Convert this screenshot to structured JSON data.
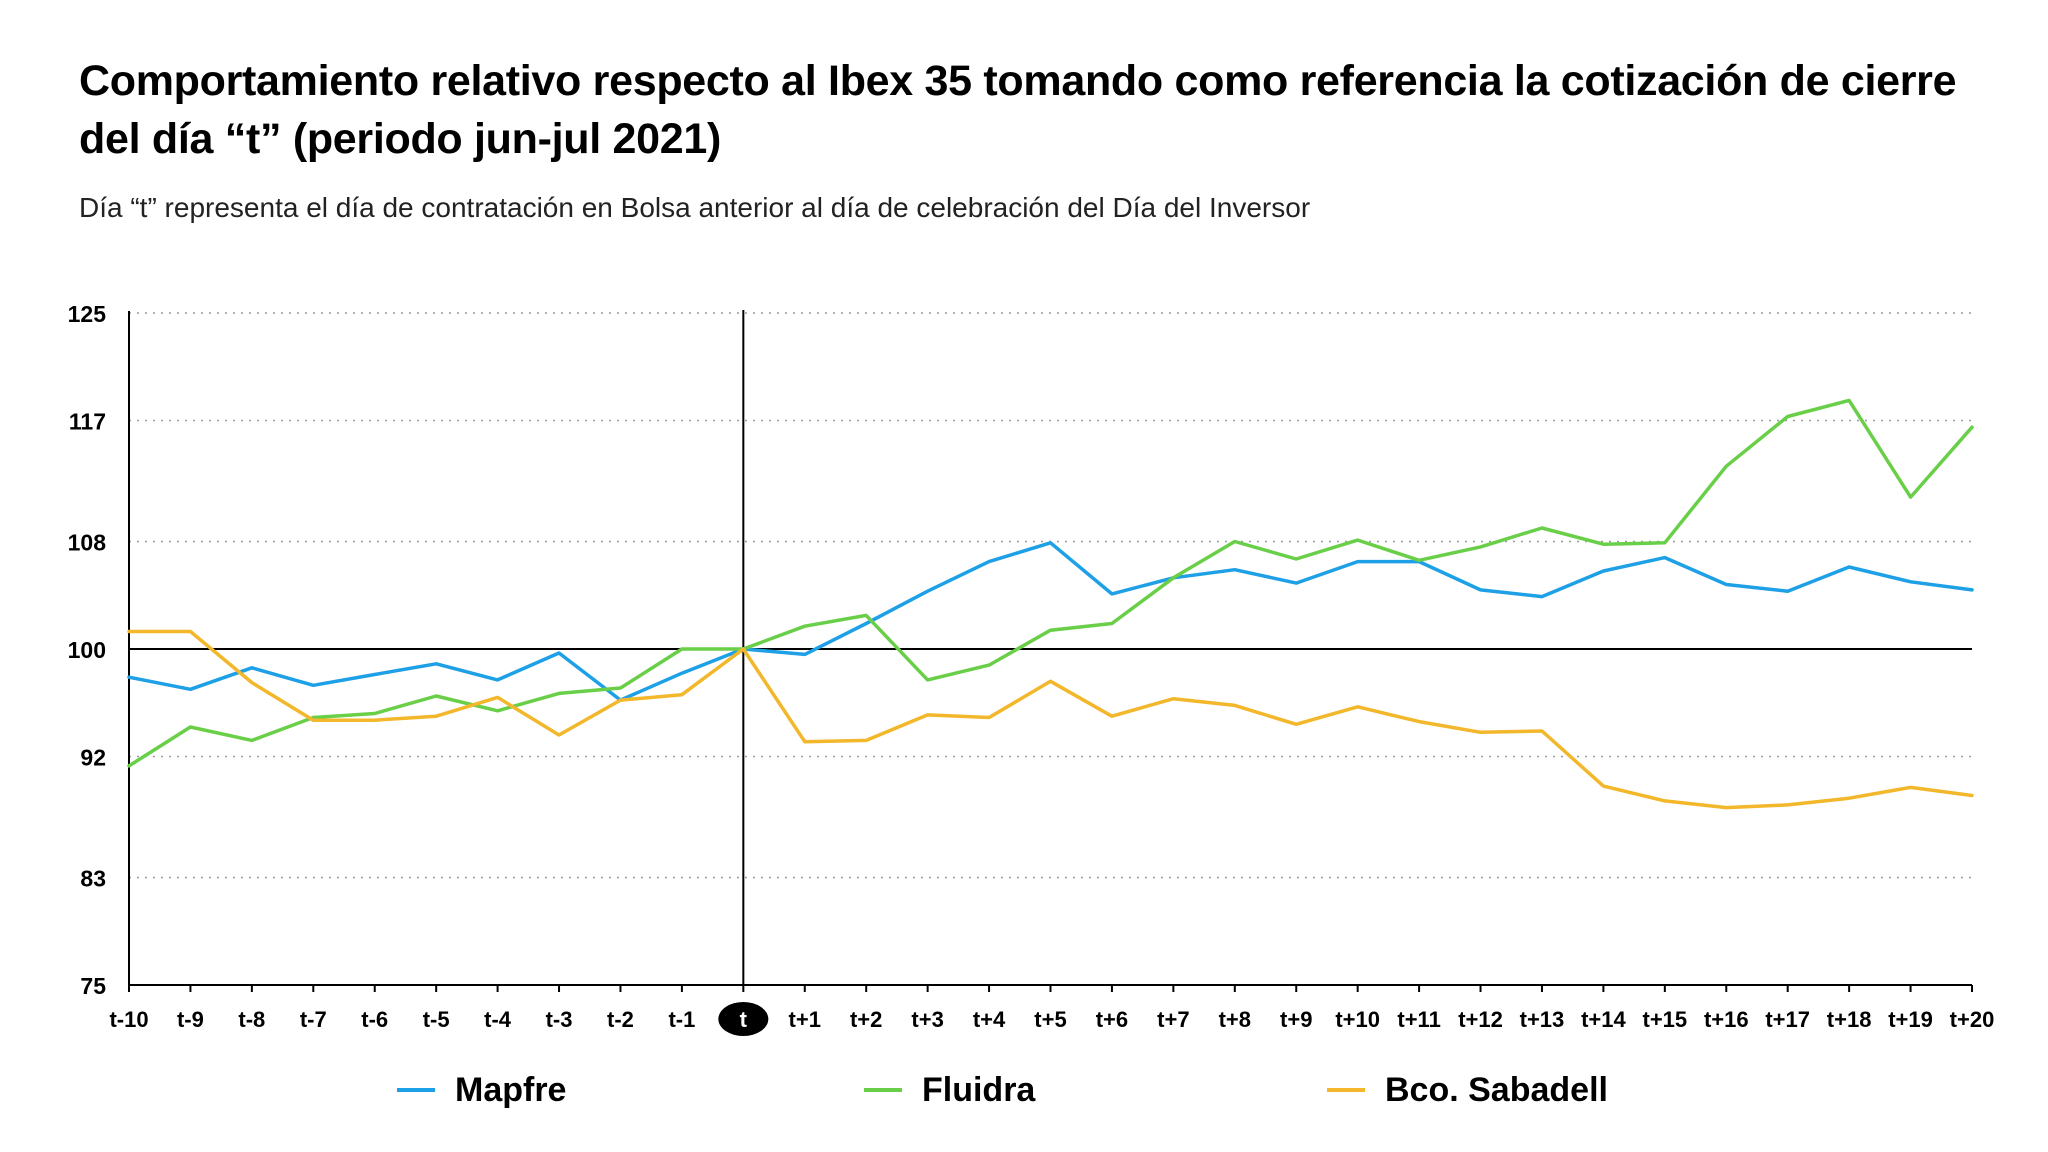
{
  "header": {
    "title": "Comportamiento relativo respecto al Ibex 35 tomando como referencia la cotización de cierre del día “t” (periodo jun-jul 2021)",
    "subtitle": "Día “t” representa el día de contratación en Bolsa anterior al día de celebración del Día del Inversor"
  },
  "chart_data": {
    "type": "line",
    "title": "Comportamiento relativo respecto al Ibex 35 tomando como referencia la cotización de cierre del día “t” (periodo jun-jul 2021)",
    "subtitle": "Día “t” representa el día de contratación en Bolsa anterior al día de celebración del Día del Inversor",
    "xlabel": "",
    "ylabel": "",
    "ylim": [
      75,
      125
    ],
    "yticks": [
      75,
      83,
      92,
      100,
      108,
      117,
      125
    ],
    "grid": true,
    "legend_position": "bottom",
    "reference_line": 100,
    "highlighted_category": "t",
    "categories": [
      "t-10",
      "t-9",
      "t-8",
      "t-7",
      "t-6",
      "t-5",
      "t-4",
      "t-3",
      "t-2",
      "t-1",
      "t",
      "t+1",
      "t+2",
      "t+3",
      "t+4",
      "t+5",
      "t+6",
      "t+7",
      "t+8",
      "t+9",
      "t+10",
      "t+11",
      "t+12",
      "t+13",
      "t+14",
      "t+15",
      "t+16",
      "t+17",
      "t+18",
      "t+19",
      "t+20"
    ],
    "series": [
      {
        "name": "Mapfre",
        "color": "#1ea0e6",
        "values": [
          97.9,
          97.0,
          98.6,
          97.3,
          98.1,
          98.9,
          97.7,
          99.7,
          96.2,
          98.2,
          100.0,
          99.6,
          101.9,
          104.3,
          106.5,
          107.9,
          104.1,
          105.3,
          105.9,
          104.9,
          106.5,
          106.5,
          104.4,
          103.9,
          105.8,
          106.8,
          104.8,
          104.3,
          106.1,
          105.0,
          104.4
        ]
      },
      {
        "name": "Fluidra",
        "color": "#6acf48",
        "values": [
          91.3,
          94.2,
          93.2,
          94.9,
          95.2,
          96.5,
          95.4,
          96.7,
          97.1,
          100.0,
          100.0,
          101.7,
          102.5,
          97.7,
          98.8,
          101.4,
          101.9,
          105.3,
          108.0,
          106.7,
          108.1,
          106.6,
          107.6,
          109.0,
          107.8,
          107.9,
          113.6,
          117.3,
          118.5,
          111.3,
          116.5
        ]
      },
      {
        "name": "Bco. Sabadell",
        "color": "#f2b72a",
        "values": [
          101.3,
          101.3,
          97.5,
          94.7,
          94.7,
          95.0,
          96.4,
          93.6,
          96.2,
          96.6,
          100.0,
          93.1,
          93.2,
          95.1,
          94.9,
          97.6,
          95.0,
          96.3,
          95.8,
          94.4,
          95.7,
          94.6,
          93.8,
          93.9,
          89.8,
          88.7,
          88.2,
          88.4,
          88.9,
          89.7,
          89.1
        ]
      }
    ]
  }
}
